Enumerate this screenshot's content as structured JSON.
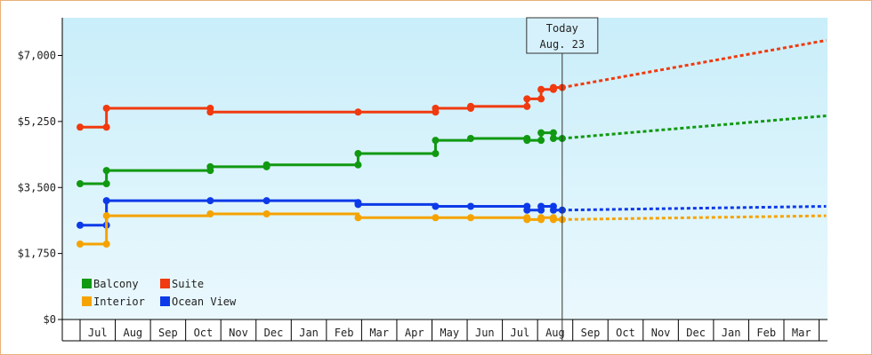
{
  "chart_data": {
    "type": "line",
    "title": "",
    "xlabel": "",
    "ylabel": "",
    "ylim": [
      0,
      8000
    ],
    "y_ticks": [
      0,
      1750,
      3500,
      5250,
      7000
    ],
    "y_tick_labels": [
      "$0",
      "$1,750",
      "$3,500",
      "$5,250",
      "$7,000"
    ],
    "x_tick_labels": [
      "Jul",
      "Aug",
      "Sep",
      "Oct",
      "Nov",
      "Dec",
      "Jan",
      "Feb",
      "Mar",
      "Apr",
      "May",
      "Jun",
      "Jul",
      "Aug",
      "Sep",
      "Oct",
      "Nov",
      "Dec",
      "Jan",
      "Feb",
      "Mar"
    ],
    "x_range_months": [
      0,
      21.2
    ],
    "today": {
      "label_line1": "Today",
      "label_line2": "Aug. 23",
      "x": 13.7
    },
    "legend": {
      "placement": "bottom-left",
      "entries": [
        "Balcony",
        "Suite",
        "Interior",
        "Ocean View"
      ]
    },
    "grid": false,
    "background_gradient": [
      "#c9eefa",
      "#eaf8fd"
    ],
    "series": [
      {
        "name": "Suite",
        "color": "#f03a0f",
        "steps": [
          [
            0,
            5100
          ],
          [
            0.75,
            5600
          ],
          [
            3.7,
            5500
          ],
          [
            7.9,
            5500
          ],
          [
            10.1,
            5600
          ],
          [
            11.1,
            5650
          ],
          [
            12.7,
            5850
          ],
          [
            13.1,
            6100
          ],
          [
            13.45,
            6150
          ],
          [
            13.7,
            6150
          ]
        ],
        "markers": [
          [
            0,
            5100
          ],
          [
            0.75,
            5100
          ],
          [
            0.75,
            5600
          ],
          [
            3.7,
            5600
          ],
          [
            3.7,
            5500
          ],
          [
            7.9,
            5500
          ],
          [
            10.1,
            5500
          ],
          [
            10.1,
            5600
          ],
          [
            11.1,
            5600
          ],
          [
            11.1,
            5650
          ],
          [
            12.7,
            5650
          ],
          [
            12.7,
            5850
          ],
          [
            13.1,
            5850
          ],
          [
            13.1,
            6100
          ],
          [
            13.45,
            6100
          ],
          [
            13.45,
            6150
          ],
          [
            13.7,
            6150
          ]
        ],
        "forecast": [
          [
            13.7,
            6150
          ],
          [
            21.2,
            7400
          ]
        ]
      },
      {
        "name": "Balcony",
        "color": "#119911",
        "steps": [
          [
            0,
            3600
          ],
          [
            0.75,
            3950
          ],
          [
            3.7,
            4050
          ],
          [
            5.3,
            4100
          ],
          [
            7.9,
            4400
          ],
          [
            10.1,
            4750
          ],
          [
            11.1,
            4800
          ],
          [
            12.7,
            4750
          ],
          [
            13.1,
            4950
          ],
          [
            13.45,
            4800
          ],
          [
            13.7,
            4800
          ]
        ],
        "markers": [
          [
            0,
            3600
          ],
          [
            0.75,
            3600
          ],
          [
            0.75,
            3950
          ],
          [
            3.7,
            3950
          ],
          [
            3.7,
            4050
          ],
          [
            5.3,
            4050
          ],
          [
            5.3,
            4100
          ],
          [
            7.9,
            4100
          ],
          [
            7.9,
            4400
          ],
          [
            10.1,
            4400
          ],
          [
            10.1,
            4750
          ],
          [
            11.1,
            4800
          ],
          [
            12.7,
            4800
          ],
          [
            12.7,
            4750
          ],
          [
            13.1,
            4750
          ],
          [
            13.1,
            4950
          ],
          [
            13.45,
            4950
          ],
          [
            13.45,
            4800
          ],
          [
            13.7,
            4800
          ]
        ],
        "forecast": [
          [
            13.7,
            4800
          ],
          [
            21.2,
            5400
          ]
        ]
      },
      {
        "name": "Ocean View",
        "color": "#0c3ae8",
        "steps": [
          [
            0,
            2500
          ],
          [
            0.75,
            3150
          ],
          [
            3.7,
            3150
          ],
          [
            7.9,
            3050
          ],
          [
            10.1,
            3000
          ],
          [
            12.7,
            2900
          ],
          [
            13.1,
            3000
          ],
          [
            13.45,
            2900
          ],
          [
            13.7,
            2900
          ]
        ],
        "markers": [
          [
            0,
            2500
          ],
          [
            0.75,
            2500
          ],
          [
            0.75,
            3150
          ],
          [
            3.7,
            3150
          ],
          [
            5.3,
            3150
          ],
          [
            7.9,
            3100
          ],
          [
            7.9,
            3050
          ],
          [
            10.1,
            3000
          ],
          [
            11.1,
            3000
          ],
          [
            12.7,
            3000
          ],
          [
            12.7,
            2900
          ],
          [
            13.1,
            2900
          ],
          [
            13.1,
            3000
          ],
          [
            13.45,
            3000
          ],
          [
            13.45,
            2900
          ],
          [
            13.7,
            2900
          ]
        ],
        "forecast": [
          [
            13.7,
            2900
          ],
          [
            21.2,
            3000
          ]
        ]
      },
      {
        "name": "Interior",
        "color": "#f5a300",
        "steps": [
          [
            0,
            2000
          ],
          [
            0.75,
            2750
          ],
          [
            3.7,
            2800
          ],
          [
            7.9,
            2700
          ],
          [
            10.1,
            2700
          ],
          [
            12.7,
            2650
          ],
          [
            13.1,
            2700
          ],
          [
            13.45,
            2650
          ],
          [
            13.7,
            2650
          ]
        ],
        "markers": [
          [
            0,
            2000
          ],
          [
            0.75,
            2000
          ],
          [
            0.75,
            2750
          ],
          [
            3.7,
            2800
          ],
          [
            5.3,
            2800
          ],
          [
            7.9,
            2700
          ],
          [
            10.1,
            2700
          ],
          [
            11.1,
            2700
          ],
          [
            12.7,
            2700
          ],
          [
            12.7,
            2650
          ],
          [
            13.1,
            2650
          ],
          [
            13.1,
            2700
          ],
          [
            13.45,
            2700
          ],
          [
            13.45,
            2650
          ],
          [
            13.7,
            2650
          ]
        ],
        "forecast": [
          [
            13.7,
            2650
          ],
          [
            21.2,
            2750
          ]
        ]
      }
    ]
  }
}
